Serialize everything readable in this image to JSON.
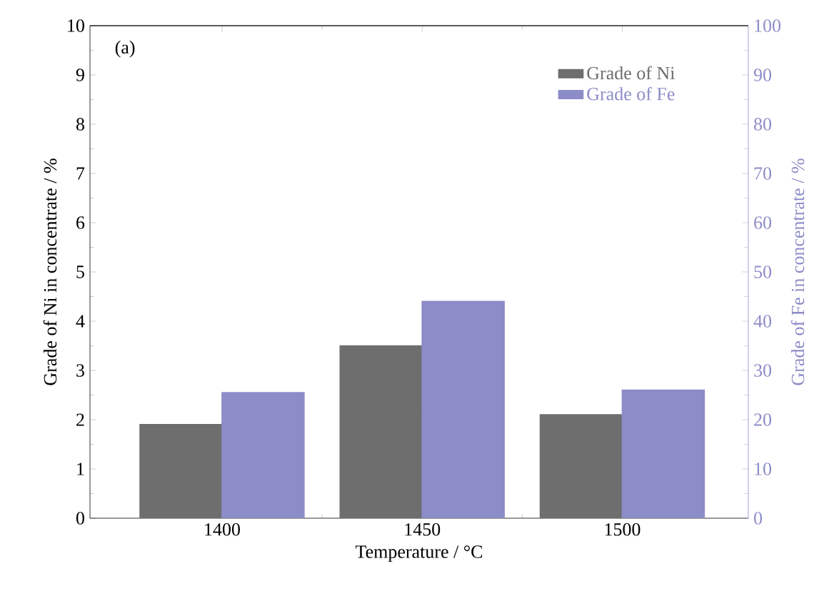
{
  "chart_data": {
    "type": "bar",
    "xlabel": "Temperature / °C",
    "ylabel": "Grade of Ni in concentrate / %",
    "y2label": "Grade of Fe in concentrate / %",
    "categories": [
      "1400",
      "1450",
      "1500"
    ],
    "series": [
      {
        "name": "Grade of Ni",
        "color": "#6e6e6e",
        "values": [
          1.9,
          3.5,
          2.1
        ]
      },
      {
        "name": "Grade of Fe",
        "color": "#8c8cc8",
        "axis": "y2",
        "values": [
          25.5,
          44,
          26
        ]
      }
    ],
    "ylim": [
      0,
      10
    ],
    "yticks": [
      0,
      1,
      2,
      3,
      4,
      5,
      6,
      7,
      8,
      9,
      10
    ],
    "y2lim": [
      0,
      100
    ],
    "y2ticks": [
      0,
      10,
      20,
      30,
      40,
      50,
      60,
      70,
      80,
      90,
      100
    ],
    "annotations": [
      "(a)"
    ],
    "legend": "top right"
  }
}
